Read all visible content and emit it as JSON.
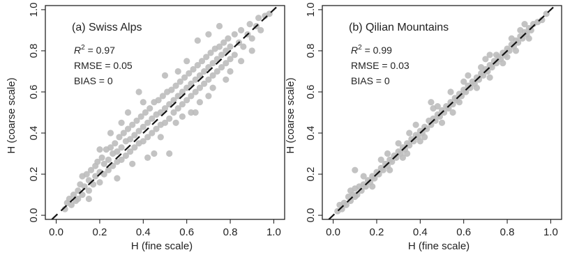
{
  "chart_data": [
    {
      "type": "scatter",
      "title": "(a) Swiss Alps",
      "xlabel": "H (fine scale)",
      "ylabel": "H (coarse scale)",
      "xlim": [
        -0.05,
        1.05
      ],
      "ylim": [
        -0.02,
        1.02
      ],
      "x_ticks": [
        "0.0",
        "0.2",
        "0.4",
        "0.6",
        "0.8",
        "1.0"
      ],
      "y_ticks": [
        "0.0",
        "0.2",
        "0.4",
        "0.6",
        "0.8",
        "1.0"
      ],
      "stats": {
        "r2_symbol": "R",
        "r2_exp": "2",
        "r2_value": " = 0.97",
        "rmse": "RMSE = 0.05",
        "bias": "BIAS = 0"
      },
      "reference_line": {
        "style": "dashed",
        "slope": 1,
        "intercept": 0
      },
      "point_color": "#bdbdbd",
      "points": [
        [
          0.04,
          0.03
        ],
        [
          0.05,
          0.06
        ],
        [
          0.06,
          0.08
        ],
        [
          0.07,
          0.05
        ],
        [
          0.08,
          0.1
        ],
        [
          0.09,
          0.07
        ],
        [
          0.1,
          0.12
        ],
        [
          0.1,
          0.08
        ],
        [
          0.11,
          0.15
        ],
        [
          0.12,
          0.1
        ],
        [
          0.12,
          0.19
        ],
        [
          0.13,
          0.14
        ],
        [
          0.14,
          0.2
        ],
        [
          0.15,
          0.12
        ],
        [
          0.15,
          0.17
        ],
        [
          0.16,
          0.22
        ],
        [
          0.17,
          0.15
        ],
        [
          0.18,
          0.24
        ],
        [
          0.18,
          0.19
        ],
        [
          0.19,
          0.26
        ],
        [
          0.2,
          0.16
        ],
        [
          0.2,
          0.21
        ],
        [
          0.21,
          0.28
        ],
        [
          0.22,
          0.2
        ],
        [
          0.22,
          0.25
        ],
        [
          0.23,
          0.32
        ],
        [
          0.24,
          0.22
        ],
        [
          0.24,
          0.27
        ],
        [
          0.25,
          0.33
        ],
        [
          0.26,
          0.24
        ],
        [
          0.26,
          0.3
        ],
        [
          0.27,
          0.35
        ],
        [
          0.28,
          0.26
        ],
        [
          0.28,
          0.31
        ],
        [
          0.29,
          0.38
        ],
        [
          0.3,
          0.27
        ],
        [
          0.3,
          0.33
        ],
        [
          0.31,
          0.4
        ],
        [
          0.32,
          0.29
        ],
        [
          0.32,
          0.36
        ],
        [
          0.33,
          0.42
        ],
        [
          0.34,
          0.31
        ],
        [
          0.34,
          0.37
        ],
        [
          0.35,
          0.44
        ],
        [
          0.36,
          0.33
        ],
        [
          0.36,
          0.39
        ],
        [
          0.37,
          0.46
        ],
        [
          0.38,
          0.35
        ],
        [
          0.38,
          0.41
        ],
        [
          0.39,
          0.48
        ],
        [
          0.4,
          0.36
        ],
        [
          0.4,
          0.43
        ],
        [
          0.41,
          0.5
        ],
        [
          0.42,
          0.38
        ],
        [
          0.42,
          0.45
        ],
        [
          0.43,
          0.52
        ],
        [
          0.44,
          0.4
        ],
        [
          0.44,
          0.47
        ],
        [
          0.45,
          0.55
        ],
        [
          0.46,
          0.42
        ],
        [
          0.46,
          0.49
        ],
        [
          0.47,
          0.56
        ],
        [
          0.48,
          0.44
        ],
        [
          0.48,
          0.5
        ],
        [
          0.49,
          0.58
        ],
        [
          0.5,
          0.45
        ],
        [
          0.5,
          0.52
        ],
        [
          0.51,
          0.6
        ],
        [
          0.52,
          0.47
        ],
        [
          0.52,
          0.54
        ],
        [
          0.53,
          0.61
        ],
        [
          0.54,
          0.5
        ],
        [
          0.54,
          0.56
        ],
        [
          0.55,
          0.63
        ],
        [
          0.56,
          0.52
        ],
        [
          0.56,
          0.58
        ],
        [
          0.57,
          0.65
        ],
        [
          0.58,
          0.54
        ],
        [
          0.58,
          0.6
        ],
        [
          0.59,
          0.67
        ],
        [
          0.6,
          0.56
        ],
        [
          0.6,
          0.62
        ],
        [
          0.61,
          0.69
        ],
        [
          0.62,
          0.58
        ],
        [
          0.62,
          0.64
        ],
        [
          0.63,
          0.71
        ],
        [
          0.64,
          0.6
        ],
        [
          0.64,
          0.66
        ],
        [
          0.65,
          0.73
        ],
        [
          0.66,
          0.62
        ],
        [
          0.66,
          0.68
        ],
        [
          0.67,
          0.75
        ],
        [
          0.68,
          0.64
        ],
        [
          0.68,
          0.7
        ],
        [
          0.69,
          0.77
        ],
        [
          0.7,
          0.66
        ],
        [
          0.7,
          0.72
        ],
        [
          0.71,
          0.79
        ],
        [
          0.72,
          0.68
        ],
        [
          0.72,
          0.74
        ],
        [
          0.73,
          0.81
        ],
        [
          0.74,
          0.7
        ],
        [
          0.74,
          0.76
        ],
        [
          0.75,
          0.82
        ],
        [
          0.76,
          0.72
        ],
        [
          0.76,
          0.78
        ],
        [
          0.77,
          0.84
        ],
        [
          0.78,
          0.74
        ],
        [
          0.78,
          0.8
        ],
        [
          0.79,
          0.86
        ],
        [
          0.8,
          0.76
        ],
        [
          0.8,
          0.82
        ],
        [
          0.82,
          0.88
        ],
        [
          0.82,
          0.78
        ],
        [
          0.84,
          0.84
        ],
        [
          0.85,
          0.9
        ],
        [
          0.86,
          0.82
        ],
        [
          0.88,
          0.88
        ],
        [
          0.89,
          0.93
        ],
        [
          0.9,
          0.86
        ],
        [
          0.92,
          0.92
        ],
        [
          0.93,
          0.96
        ],
        [
          0.94,
          0.9
        ],
        [
          0.96,
          0.97
        ],
        [
          0.98,
          0.98
        ],
        [
          0.35,
          0.25
        ],
        [
          0.45,
          0.3
        ],
        [
          0.55,
          0.45
        ],
        [
          0.62,
          0.5
        ],
        [
          0.4,
          0.55
        ],
        [
          0.3,
          0.45
        ],
        [
          0.5,
          0.68
        ],
        [
          0.6,
          0.75
        ],
        [
          0.7,
          0.58
        ],
        [
          0.65,
          0.85
        ],
        [
          0.75,
          0.92
        ],
        [
          0.25,
          0.4
        ],
        [
          0.2,
          0.32
        ],
        [
          0.38,
          0.6
        ],
        [
          0.48,
          0.38
        ],
        [
          0.52,
          0.3
        ],
        [
          0.58,
          0.48
        ],
        [
          0.66,
          0.55
        ],
        [
          0.8,
          0.7
        ],
        [
          0.85,
          0.75
        ],
        [
          0.9,
          0.8
        ],
        [
          0.7,
          0.88
        ],
        [
          0.15,
          0.08
        ],
        [
          0.28,
          0.18
        ],
        [
          0.33,
          0.5
        ],
        [
          0.42,
          0.28
        ],
        [
          0.56,
          0.7
        ],
        [
          0.64,
          0.5
        ],
        [
          0.72,
          0.62
        ],
        [
          0.78,
          0.66
        ]
      ]
    },
    {
      "type": "scatter",
      "title": "(b) Qilian Mountains",
      "xlabel": "H (fine scale)",
      "ylabel": "H (coarse scale)",
      "xlim": [
        -0.05,
        1.05
      ],
      "ylim": [
        -0.02,
        1.02
      ],
      "x_ticks": [
        "0.0",
        "0.2",
        "0.4",
        "0.6",
        "0.8",
        "1.0"
      ],
      "y_ticks": [
        "0.0",
        "0.2",
        "0.4",
        "0.6",
        "0.8",
        "1.0"
      ],
      "stats": {
        "r2_symbol": "R",
        "r2_exp": "2",
        "r2_value": " = 0.99",
        "rmse": "RMSE = 0.03",
        "bias": "BIAS = 0"
      },
      "reference_line": {
        "style": "dashed",
        "slope": 1,
        "intercept": 0
      },
      "point_color": "#bdbdbd",
      "points": [
        [
          0.02,
          0.02
        ],
        [
          0.03,
          0.05
        ],
        [
          0.04,
          0.03
        ],
        [
          0.05,
          0.06
        ],
        [
          0.06,
          0.05
        ],
        [
          0.07,
          0.09
        ],
        [
          0.08,
          0.07
        ],
        [
          0.09,
          0.1
        ],
        [
          0.1,
          0.09
        ],
        [
          0.1,
          0.13
        ],
        [
          0.11,
          0.1
        ],
        [
          0.12,
          0.14
        ],
        [
          0.13,
          0.12
        ],
        [
          0.14,
          0.15
        ],
        [
          0.15,
          0.14
        ],
        [
          0.16,
          0.17
        ],
        [
          0.17,
          0.16
        ],
        [
          0.18,
          0.19
        ],
        [
          0.19,
          0.18
        ],
        [
          0.2,
          0.21
        ],
        [
          0.21,
          0.2
        ],
        [
          0.22,
          0.23
        ],
        [
          0.23,
          0.22
        ],
        [
          0.24,
          0.25
        ],
        [
          0.25,
          0.24
        ],
        [
          0.26,
          0.27
        ],
        [
          0.27,
          0.26
        ],
        [
          0.28,
          0.29
        ],
        [
          0.29,
          0.28
        ],
        [
          0.3,
          0.31
        ],
        [
          0.31,
          0.3
        ],
        [
          0.32,
          0.33
        ],
        [
          0.33,
          0.32
        ],
        [
          0.34,
          0.35
        ],
        [
          0.35,
          0.34
        ],
        [
          0.36,
          0.37
        ],
        [
          0.37,
          0.36
        ],
        [
          0.38,
          0.39
        ],
        [
          0.39,
          0.38
        ],
        [
          0.4,
          0.41
        ],
        [
          0.41,
          0.4
        ],
        [
          0.42,
          0.43
        ],
        [
          0.43,
          0.42
        ],
        [
          0.44,
          0.46
        ],
        [
          0.45,
          0.44
        ],
        [
          0.46,
          0.47
        ],
        [
          0.47,
          0.46
        ],
        [
          0.48,
          0.49
        ],
        [
          0.49,
          0.48
        ],
        [
          0.5,
          0.51
        ],
        [
          0.51,
          0.5
        ],
        [
          0.52,
          0.53
        ],
        [
          0.53,
          0.52
        ],
        [
          0.54,
          0.55
        ],
        [
          0.55,
          0.54
        ],
        [
          0.56,
          0.57
        ],
        [
          0.57,
          0.56
        ],
        [
          0.58,
          0.59
        ],
        [
          0.59,
          0.58
        ],
        [
          0.6,
          0.61
        ],
        [
          0.61,
          0.6
        ],
        [
          0.62,
          0.63
        ],
        [
          0.63,
          0.62
        ],
        [
          0.64,
          0.65
        ],
        [
          0.65,
          0.64
        ],
        [
          0.66,
          0.67
        ],
        [
          0.67,
          0.66
        ],
        [
          0.68,
          0.69
        ],
        [
          0.69,
          0.68
        ],
        [
          0.7,
          0.71
        ],
        [
          0.71,
          0.7
        ],
        [
          0.72,
          0.73
        ],
        [
          0.73,
          0.72
        ],
        [
          0.74,
          0.75
        ],
        [
          0.75,
          0.74
        ],
        [
          0.76,
          0.77
        ],
        [
          0.77,
          0.76
        ],
        [
          0.78,
          0.79
        ],
        [
          0.79,
          0.78
        ],
        [
          0.8,
          0.81
        ],
        [
          0.81,
          0.8
        ],
        [
          0.82,
          0.83
        ],
        [
          0.83,
          0.82
        ],
        [
          0.84,
          0.85
        ],
        [
          0.85,
          0.84
        ],
        [
          0.86,
          0.87
        ],
        [
          0.87,
          0.86
        ],
        [
          0.88,
          0.89
        ],
        [
          0.89,
          0.88
        ],
        [
          0.9,
          0.91
        ],
        [
          0.91,
          0.9
        ],
        [
          0.92,
          0.93
        ],
        [
          0.94,
          0.94
        ],
        [
          0.96,
          0.95
        ],
        [
          0.98,
          0.98
        ],
        [
          0.08,
          0.12
        ],
        [
          0.1,
          0.22
        ],
        [
          0.14,
          0.19
        ],
        [
          0.18,
          0.14
        ],
        [
          0.22,
          0.27
        ],
        [
          0.26,
          0.22
        ],
        [
          0.3,
          0.35
        ],
        [
          0.34,
          0.3
        ],
        [
          0.38,
          0.44
        ],
        [
          0.42,
          0.38
        ],
        [
          0.46,
          0.52
        ],
        [
          0.5,
          0.45
        ],
        [
          0.54,
          0.6
        ],
        [
          0.58,
          0.55
        ],
        [
          0.62,
          0.68
        ],
        [
          0.66,
          0.62
        ],
        [
          0.7,
          0.76
        ],
        [
          0.72,
          0.67
        ],
        [
          0.75,
          0.78
        ],
        [
          0.78,
          0.74
        ],
        [
          0.82,
          0.86
        ],
        [
          0.84,
          0.8
        ],
        [
          0.88,
          0.93
        ],
        [
          0.9,
          0.86
        ],
        [
          0.45,
          0.55
        ],
        [
          0.55,
          0.5
        ],
        [
          0.6,
          0.65
        ],
        [
          0.35,
          0.4
        ],
        [
          0.25,
          0.3
        ],
        [
          0.68,
          0.72
        ],
        [
          0.8,
          0.77
        ],
        [
          0.86,
          0.9
        ],
        [
          0.72,
          0.78
        ],
        [
          0.32,
          0.28
        ],
        [
          0.4,
          0.36
        ],
        [
          0.48,
          0.53
        ]
      ]
    }
  ]
}
